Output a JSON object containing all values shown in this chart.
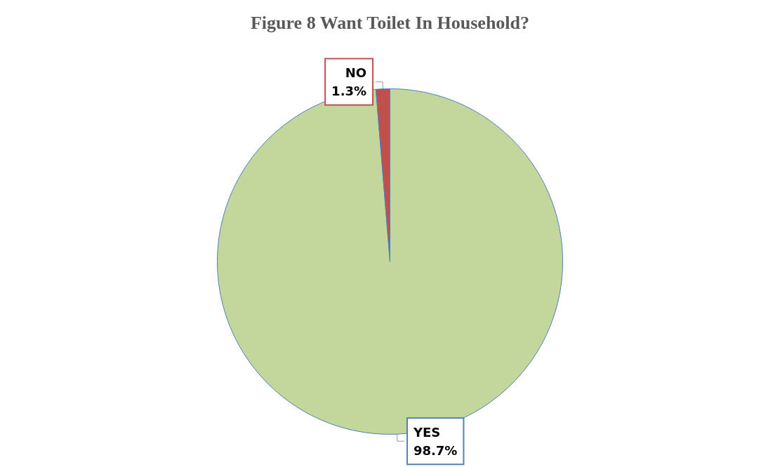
{
  "chart_data": {
    "type": "pie",
    "title": "Figure 8 Want Toilet In Household?",
    "categories": [
      "YES",
      "NO"
    ],
    "values": [
      98.7,
      1.3
    ],
    "colors": [
      "#c3d69b",
      "#c0504d"
    ],
    "value_labels": [
      "98.7%",
      "1.3%"
    ],
    "legend": false
  }
}
